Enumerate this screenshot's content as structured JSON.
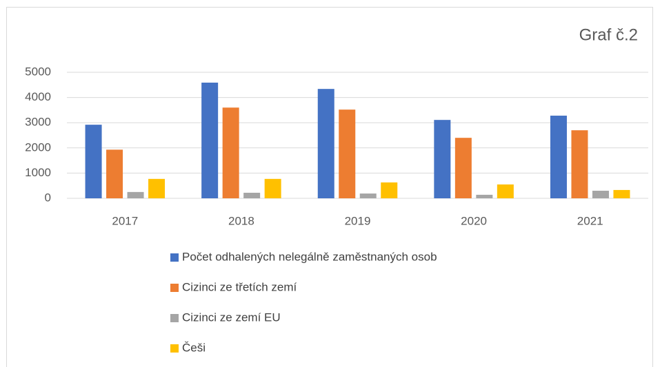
{
  "chart_data": {
    "type": "bar",
    "title": "Graf č.2",
    "categories": [
      "2017",
      "2018",
      "2019",
      "2020",
      "2021"
    ],
    "series": [
      {
        "name": "Počet odhalených nelegálně zaměstnaných osob",
        "color": "#4472c4",
        "values": [
          2920,
          4590,
          4340,
          3110,
          3280
        ]
      },
      {
        "name": "Cizinci ze třetích zemí",
        "color": "#ed7d31",
        "values": [
          1930,
          3600,
          3520,
          2400,
          2700
        ]
      },
      {
        "name": "Cizinci ze zemí EU",
        "color": "#a5a5a5",
        "values": [
          250,
          220,
          190,
          140,
          300
        ]
      },
      {
        "name": "Češi",
        "color": "#ffc000",
        "values": [
          770,
          770,
          630,
          550,
          330
        ]
      }
    ],
    "ylim": [
      0,
      5000
    ],
    "yticks": [
      0,
      1000,
      2000,
      3000,
      4000,
      5000
    ],
    "grid": true,
    "legend": "bottom"
  }
}
